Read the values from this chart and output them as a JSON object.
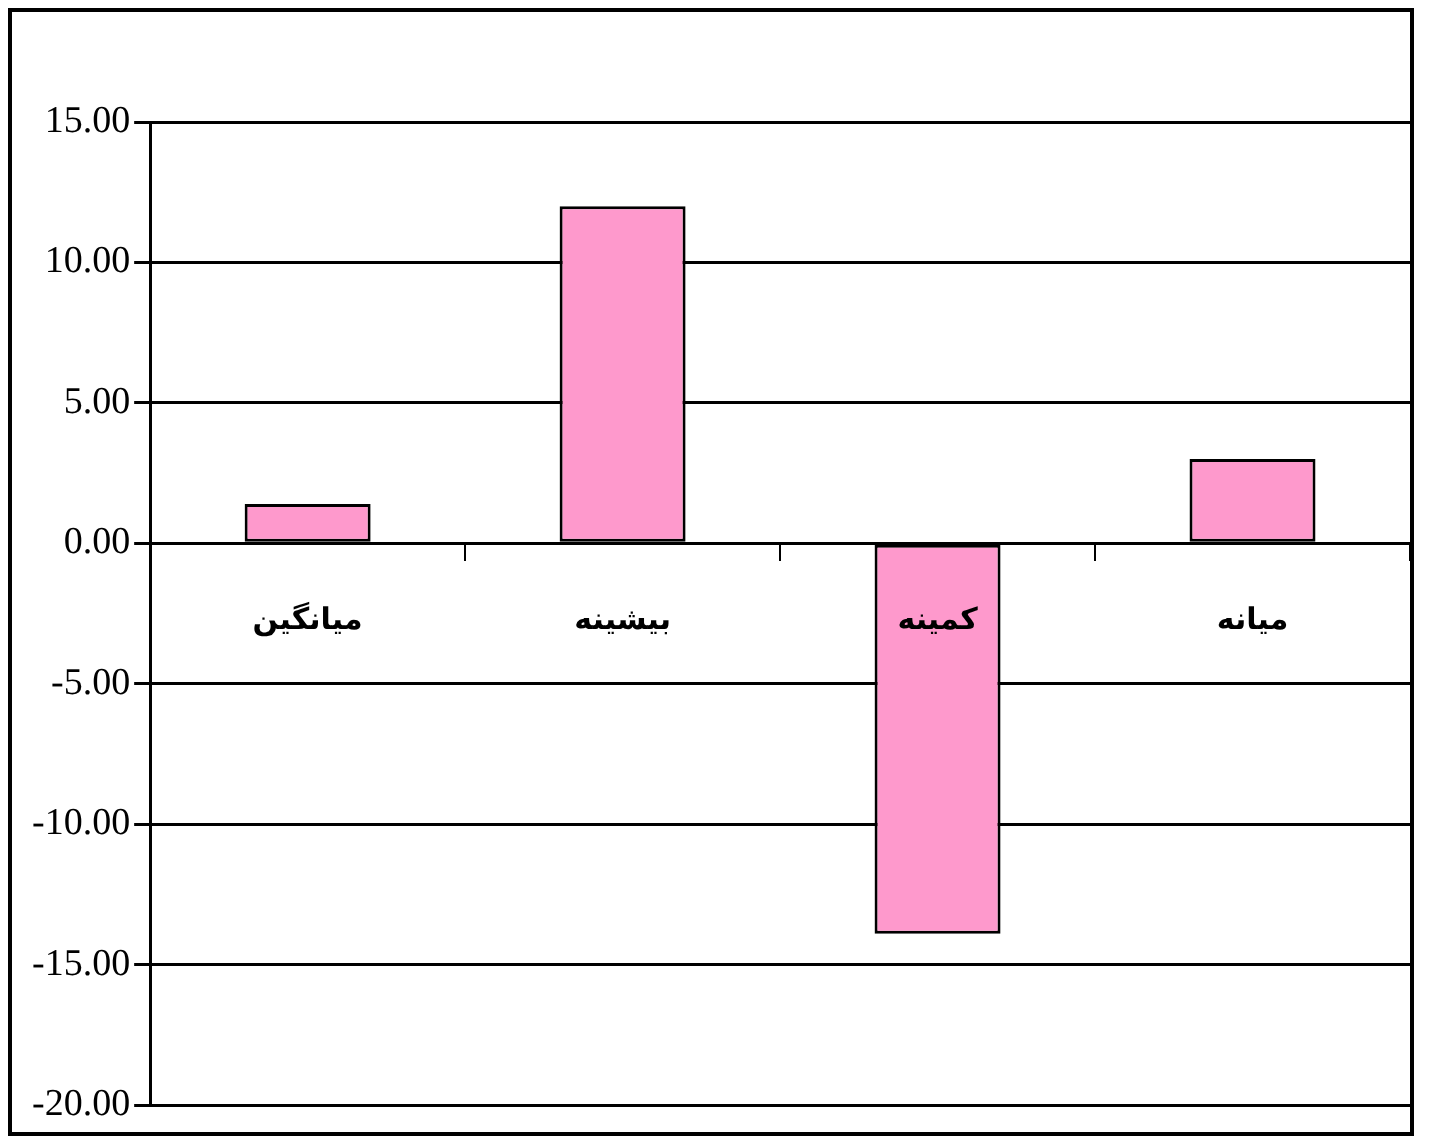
{
  "chart_data": {
    "type": "bar",
    "categories": [
      "میانگین",
      "بیشینه",
      "کمینه",
      "میانه"
    ],
    "values": [
      1.4,
      12.0,
      -13.9,
      3.0
    ],
    "color": "#fe99cc",
    "ylim": [
      -20,
      15
    ],
    "yticks": [
      {
        "value": -20,
        "label": "-20.00"
      },
      {
        "value": -15,
        "label": "-15.00"
      },
      {
        "value": -10,
        "label": "-10.00"
      },
      {
        "value": -5,
        "label": "-5.00"
      },
      {
        "value": 0,
        "label": "0.00"
      },
      {
        "value": 5,
        "label": "5.00"
      },
      {
        "value": 10,
        "label": "10.00"
      },
      {
        "value": 15,
        "label": "15.00"
      }
    ],
    "grid": "y"
  }
}
